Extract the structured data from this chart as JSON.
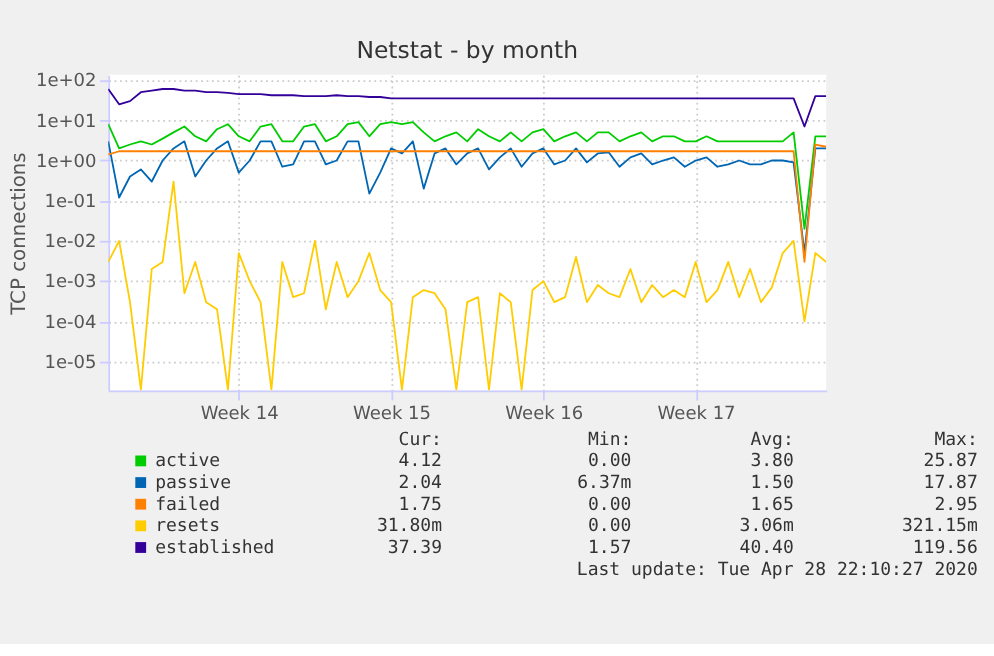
{
  "chart_data": {
    "type": "line",
    "title": "Netstat - by month",
    "ylabel": "TCP connections",
    "categories": [
      null,
      null,
      null,
      null,
      null,
      null,
      null,
      null,
      null,
      null,
      null,
      null,
      "Week 14",
      null,
      null,
      null,
      null,
      null,
      null,
      null,
      null,
      null,
      null,
      null,
      null,
      null,
      "Week 15",
      null,
      null,
      null,
      null,
      null,
      null,
      null,
      null,
      null,
      null,
      null,
      null,
      null,
      "Week 16",
      null,
      null,
      null,
      null,
      null,
      null,
      null,
      null,
      null,
      null,
      null,
      null,
      null,
      "Week 17",
      null,
      null,
      null,
      null,
      null,
      null,
      null,
      null,
      null,
      null,
      null,
      null
    ],
    "series": [
      {
        "name": "active",
        "color": "#00cc00",
        "values": [
          8,
          2,
          2.5,
          3,
          2.5,
          3.5,
          5,
          7,
          4,
          3,
          6,
          8,
          4,
          3,
          7,
          8,
          3,
          3,
          7,
          8,
          3,
          4,
          8,
          9,
          4,
          8,
          9,
          8,
          9,
          5,
          3,
          4,
          5,
          3,
          6,
          4,
          3,
          5,
          3,
          5,
          6,
          3,
          4,
          5,
          3,
          5,
          5,
          3,
          4,
          5,
          3,
          4,
          4,
          3,
          3,
          4,
          3,
          3,
          3,
          3,
          3,
          3,
          3,
          5,
          0.02,
          4,
          4
        ]
      },
      {
        "name": "passive",
        "color": "#0066b3",
        "values": [
          3,
          0.12,
          0.4,
          0.6,
          0.3,
          1,
          2,
          3,
          0.4,
          1,
          2,
          3,
          0.5,
          1,
          3,
          3,
          0.7,
          0.8,
          3,
          3,
          0.8,
          1,
          3,
          3,
          0.15,
          0.5,
          2,
          1.5,
          3,
          0.2,
          1.5,
          2,
          0.8,
          1.5,
          2,
          0.6,
          1.2,
          2,
          0.7,
          1.5,
          2,
          0.8,
          1,
          2,
          0.9,
          1.5,
          1.6,
          0.7,
          1.2,
          1.5,
          0.8,
          1,
          1.2,
          0.7,
          1,
          1.2,
          0.7,
          0.8,
          1,
          0.8,
          0.8,
          1,
          1,
          0.9,
          0.005,
          2,
          2
        ]
      },
      {
        "name": "failed",
        "color": "#ff8000",
        "values": [
          1.4,
          1.7,
          1.7,
          1.7,
          1.7,
          1.7,
          1.7,
          1.7,
          1.7,
          1.7,
          1.7,
          1.7,
          1.7,
          1.7,
          1.7,
          1.7,
          1.7,
          1.7,
          1.7,
          1.7,
          1.7,
          1.7,
          1.7,
          1.7,
          1.7,
          1.7,
          1.7,
          1.7,
          1.7,
          1.7,
          1.7,
          1.7,
          1.7,
          1.7,
          1.7,
          1.7,
          1.7,
          1.7,
          1.7,
          1.7,
          1.7,
          1.7,
          1.7,
          1.7,
          1.7,
          1.7,
          1.7,
          1.7,
          1.7,
          1.7,
          1.7,
          1.7,
          1.7,
          1.7,
          1.7,
          1.7,
          1.7,
          1.7,
          1.7,
          1.7,
          1.7,
          1.7,
          1.7,
          1.7,
          0.003,
          2.5,
          2.2
        ]
      },
      {
        "name": "resets",
        "color": "#ffcc00",
        "values": [
          0.003,
          0.01,
          0.0003,
          2e-06,
          0.002,
          0.003,
          0.3,
          0.0005,
          0.003,
          0.0003,
          0.0002,
          2e-06,
          0.005,
          0.001,
          0.0003,
          2e-06,
          0.003,
          0.0004,
          0.0005,
          0.01,
          0.0002,
          0.003,
          0.0004,
          0.001,
          0.005,
          0.0006,
          0.0003,
          2e-06,
          0.0004,
          0.0006,
          0.0005,
          0.0002,
          2e-06,
          0.0003,
          0.0004,
          2e-06,
          0.0005,
          0.0003,
          2e-06,
          0.0006,
          0.001,
          0.0003,
          0.0004,
          0.004,
          0.0003,
          0.0008,
          0.0005,
          0.0004,
          0.002,
          0.0003,
          0.0008,
          0.0004,
          0.0006,
          0.0004,
          0.003,
          0.0003,
          0.0006,
          0.003,
          0.0004,
          0.002,
          0.0003,
          0.0007,
          0.005,
          0.01,
          0.0001,
          0.005,
          0.003
        ]
      },
      {
        "name": "established",
        "color": "#330099",
        "values": [
          60,
          25,
          30,
          50,
          55,
          60,
          60,
          55,
          55,
          50,
          50,
          48,
          45,
          45,
          45,
          42,
          42,
          42,
          40,
          40,
          40,
          42,
          40,
          40,
          38,
          38,
          35,
          35,
          35,
          35,
          35,
          35,
          35,
          35,
          35,
          35,
          35,
          35,
          35,
          35,
          35,
          35,
          35,
          35,
          35,
          35,
          35,
          35,
          35,
          35,
          35,
          35,
          35,
          35,
          35,
          35,
          35,
          35,
          35,
          35,
          35,
          35,
          35,
          35,
          7,
          40,
          40
        ]
      }
    ],
    "ylim": [
      1.9e-06,
      135
    ],
    "log": true,
    "yticks": [
      {
        "value": 1e-05,
        "label": "1e-05"
      },
      {
        "value": 0.0001,
        "label": "1e-04"
      },
      {
        "value": 0.001,
        "label": "1e-03"
      },
      {
        "value": 0.01,
        "label": "1e-02"
      },
      {
        "value": 0.1,
        "label": "1e-01"
      },
      {
        "value": 1,
        "label": "1e+00"
      },
      {
        "value": 10,
        "label": "1e+01"
      },
      {
        "value": 100,
        "label": "1e+02"
      }
    ],
    "grid": true,
    "legend": "bottom",
    "annotations": [
      "Cur:",
      "Min:",
      "Avg:",
      "Max:",
      "4.12",
      "0.00",
      "3.80",
      "25.87",
      "2.04",
      "6.37m",
      "1.50",
      "17.87",
      "1.75",
      "0.00",
      "1.65",
      "2.95",
      "31.80m",
      "0.00",
      "3.06m",
      "321.15m",
      "37.39",
      "1.57",
      "40.40",
      "119.56",
      "Last update: Tue Apr 28 22:10:27 2020"
    ]
  }
}
